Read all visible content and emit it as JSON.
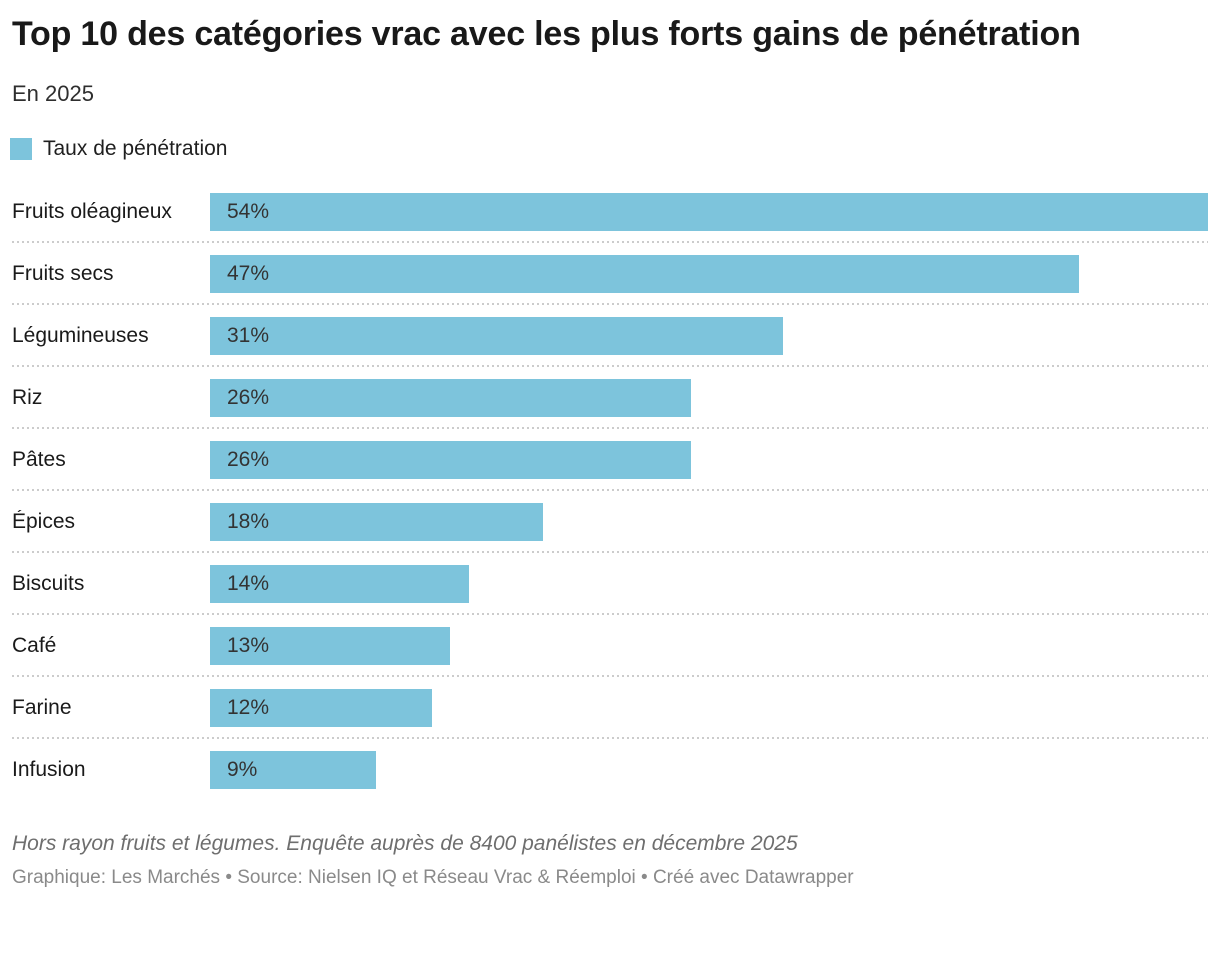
{
  "header": {
    "title": "Top 10 des catégories vrac avec les plus forts gains de pénétration",
    "subtitle": "En 2025"
  },
  "legend": {
    "label": "Taux de pénétration",
    "color": "#7dc4dc"
  },
  "chart_data": {
    "type": "bar",
    "orientation": "horizontal",
    "title": "Top 10 des catégories vrac avec les plus forts gains de pénétration",
    "subtitle": "En 2025",
    "legend_entries": [
      "Taux de pénétration"
    ],
    "legend_position": "top-left",
    "categories": [
      "Fruits oléagineux",
      "Fruits secs",
      "Légumineuses",
      "Riz",
      "Pâtes",
      "Épices",
      "Biscuits",
      "Café",
      "Farine",
      "Infusion"
    ],
    "values": [
      54,
      47,
      31,
      26,
      26,
      18,
      14,
      13,
      12,
      9
    ],
    "value_labels": [
      "54%",
      "47%",
      "31%",
      "26%",
      "26%",
      "18%",
      "14%",
      "13%",
      "12%",
      "9%"
    ],
    "unit": "%",
    "xlim": [
      0,
      54
    ],
    "bar_color": "#7dc4dc",
    "value_label_color": "#333333",
    "grid": "off",
    "row_separator": "dotted"
  },
  "footer": {
    "notes": "Hors rayon fruits et légumes. Enquête auprès de 8400 panélistes en décembre 2025",
    "byline": "Graphique: Les Marchés • Source: Nielsen IQ et Réseau Vrac & Réemploi • Créé avec Datawrapper"
  }
}
